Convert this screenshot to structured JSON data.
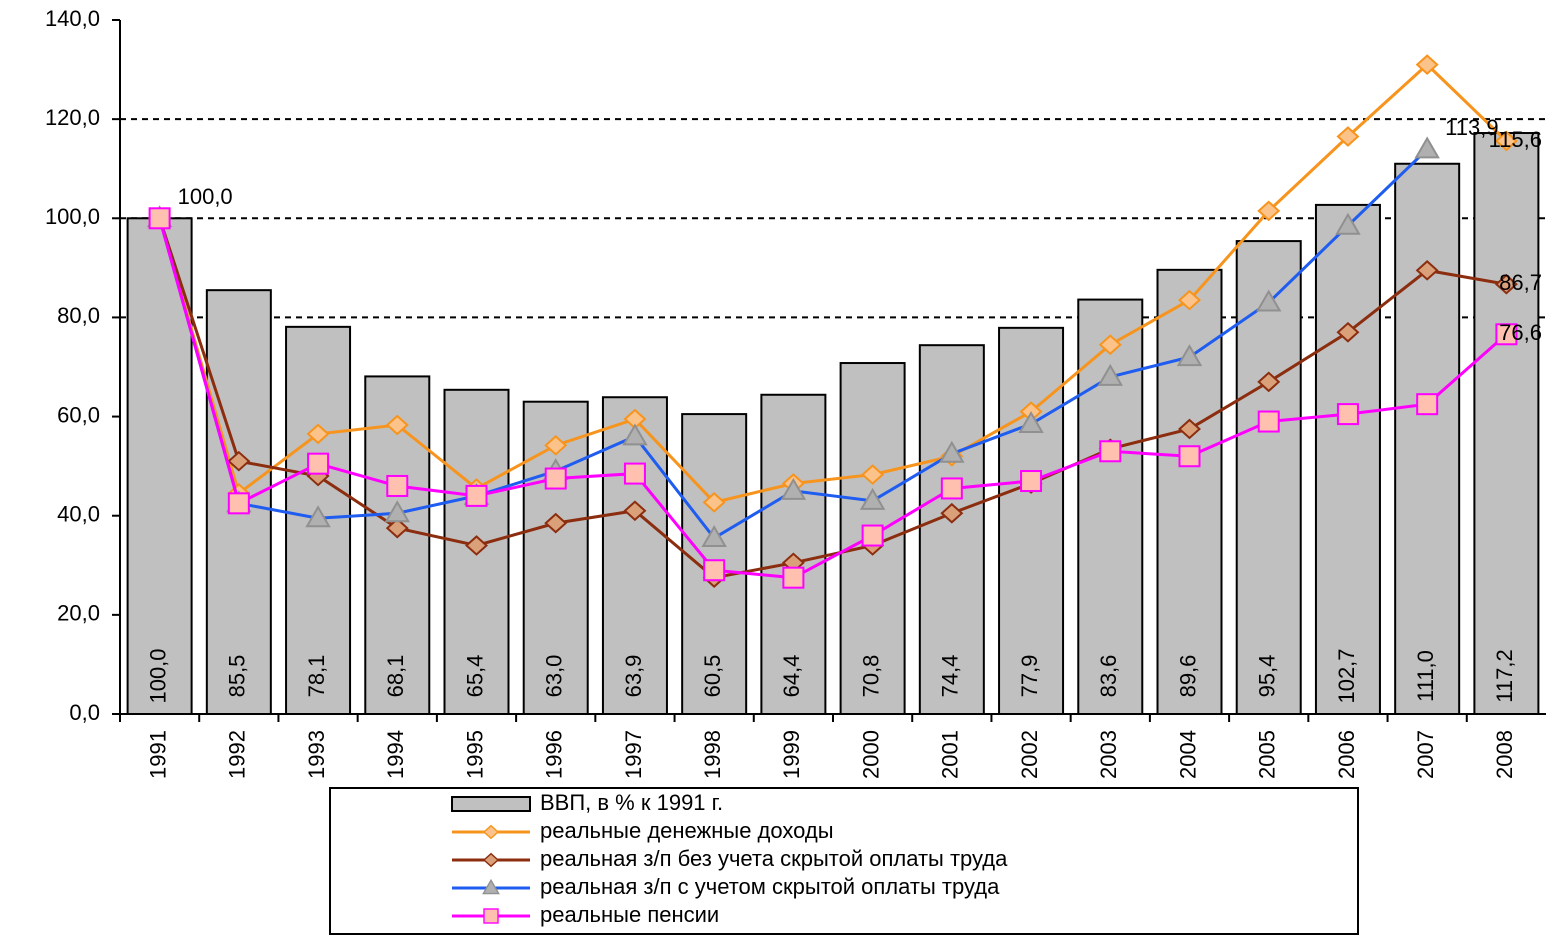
{
  "chart_data": {
    "type": "bar_line",
    "categories": [
      "1991",
      "1992",
      "1993",
      "1994",
      "1995",
      "1996",
      "1997",
      "1998",
      "1999",
      "2000",
      "2001",
      "2002",
      "2003",
      "2004",
      "2005",
      "2006",
      "2007",
      "2008"
    ],
    "ylim": [
      0,
      140
    ],
    "yticks": [
      {
        "value": 0,
        "label": "0,0"
      },
      {
        "value": 20,
        "label": "20,0"
      },
      {
        "value": 40,
        "label": "40,0"
      },
      {
        "value": 60,
        "label": "60,0"
      },
      {
        "value": 80,
        "label": "80,0"
      },
      {
        "value": 100,
        "label": "100,0"
      },
      {
        "value": 120,
        "label": "120,0"
      },
      {
        "value": 140,
        "label": "140,0"
      }
    ],
    "grid_lines": [
      80,
      100,
      120
    ],
    "legend": "bottom",
    "series": [
      {
        "name": "ВВП, в % к 1991 г.",
        "kind": "bar",
        "color": "#c0c0c0",
        "values": [
          100.0,
          85.5,
          78.1,
          68.1,
          65.4,
          63.0,
          63.9,
          60.5,
          64.4,
          70.8,
          74.4,
          77.9,
          83.6,
          89.6,
          95.4,
          102.7,
          111.0,
          117.2
        ],
        "value_labels": [
          "100,0",
          "85,5",
          "78,1",
          "68,1",
          "65,4",
          "63,0",
          "63,9",
          "60,5",
          "64,4",
          "70,8",
          "74,4",
          "77,9",
          "83,6",
          "89,6",
          "95,4",
          "102,7",
          "111,0",
          "117,2"
        ]
      },
      {
        "name": "реальные денежные доходы",
        "kind": "line",
        "marker": "diamond",
        "color": "#f7941d",
        "marker_fill": "#fbc38a",
        "values": [
          100,
          44.5,
          56.5,
          58.3,
          45.5,
          54.2,
          59.5,
          42.7,
          46.5,
          48.3,
          52,
          61,
          74.5,
          83.5,
          101.5,
          116.5,
          131,
          115.6
        ],
        "value_labels": [
          null,
          null,
          null,
          null,
          null,
          null,
          null,
          null,
          null,
          null,
          null,
          null,
          null,
          null,
          null,
          null,
          null,
          "115,6"
        ]
      },
      {
        "name": "реальная з/п без учета скрытой оплаты труда",
        "kind": "line",
        "marker": "diamond",
        "color": "#8b2d0e",
        "marker_fill": "#d9a07a",
        "values": [
          100,
          51,
          48,
          37.5,
          34,
          38.5,
          41,
          27.5,
          30.5,
          34,
          40.5,
          46.5,
          53.5,
          57.5,
          67,
          77,
          89.5,
          86.7
        ],
        "value_labels": [
          null,
          null,
          null,
          null,
          null,
          null,
          null,
          null,
          null,
          null,
          null,
          null,
          null,
          null,
          null,
          null,
          null,
          "86,7"
        ]
      },
      {
        "name": "реальная з/п с учетом скрытой оплаты труда",
        "kind": "line",
        "marker": "triangle",
        "color": "#1f5cf0",
        "marker_fill": "#b0b0b0",
        "values": [
          100,
          42.5,
          39.5,
          40.5,
          44,
          49,
          56,
          35.5,
          45,
          43,
          52.5,
          58.5,
          68,
          72,
          83,
          98.5,
          113.9,
          null
        ],
        "value_labels": [
          null,
          null,
          null,
          null,
          null,
          null,
          null,
          null,
          null,
          null,
          null,
          null,
          null,
          null,
          null,
          null,
          "113,9",
          null
        ]
      },
      {
        "name": "реальные пенсии",
        "kind": "line",
        "marker": "square",
        "color": "#ff00ff",
        "marker_fill": "#ffc0b0",
        "values": [
          100,
          42.5,
          50.5,
          46,
          44,
          47.5,
          48.5,
          29,
          27.5,
          36,
          45.5,
          47,
          53,
          52,
          59,
          60.5,
          62.5,
          76.6
        ],
        "value_labels": [
          "100,0",
          null,
          null,
          null,
          null,
          null,
          null,
          null,
          null,
          null,
          null,
          null,
          null,
          null,
          null,
          null,
          null,
          "76,6"
        ]
      }
    ]
  }
}
